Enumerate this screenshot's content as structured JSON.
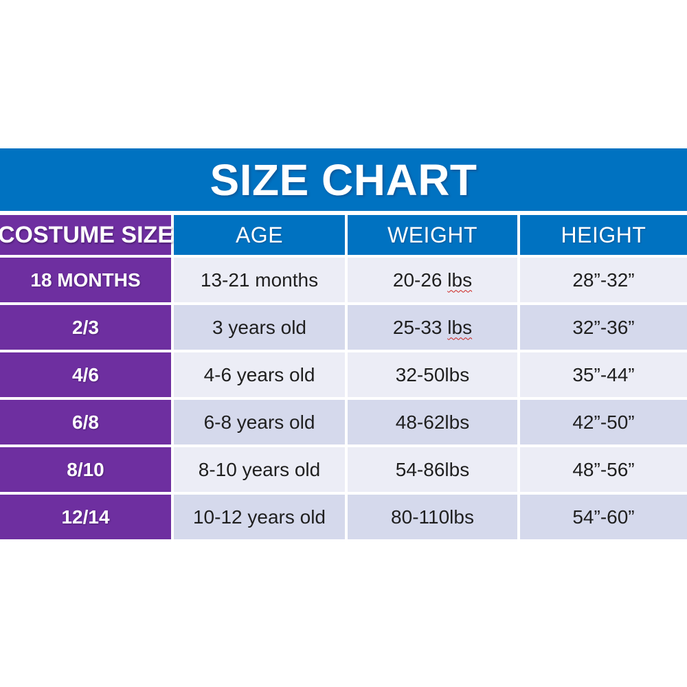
{
  "title": "SIZE CHART",
  "colors": {
    "band_blue": "#0072c1",
    "column_purple": "#6e2fa0",
    "row_light": "#ecedf6",
    "row_dark": "#d5d9ec",
    "body_text": "#1f1f1f",
    "header_text": "#ffffff",
    "spellcheck_red": "#cc1f1a"
  },
  "table": {
    "headers": [
      "COSTUME SIZE",
      "AGE",
      "WEIGHT",
      "HEIGHT"
    ],
    "rows": [
      {
        "size": "18 MONTHS",
        "age": "13-21 months",
        "weight_range": "20-26",
        "weight_unit": "lbs",
        "height": "28”-32”"
      },
      {
        "size": "2/3",
        "age": "3 years old",
        "weight_range": "25-33",
        "weight_unit": "lbs",
        "height": "32”-36”"
      },
      {
        "size": "4/6",
        "age": "4-6 years old",
        "weight_range": "32-50",
        "weight_unit": "lbs",
        "height": "35”-44”"
      },
      {
        "size": "6/8",
        "age": "6-8 years old",
        "weight_range": "48-62",
        "weight_unit": "lbs",
        "height": "42”-50”"
      },
      {
        "size": "8/10",
        "age": "8-10 years old",
        "weight_range": "54-86",
        "weight_unit": "lbs",
        "height": "48”-56”"
      },
      {
        "size": "12/14",
        "age": "10-12 years old",
        "weight_range": "80-110",
        "weight_unit": "lbs",
        "height": "54”-60”"
      }
    ]
  },
  "chart_data": {
    "type": "table",
    "title": "SIZE CHART",
    "columns": [
      "COSTUME SIZE",
      "AGE",
      "WEIGHT",
      "HEIGHT"
    ],
    "rows": [
      [
        "18 MONTHS",
        "13-21 months",
        "20-26 lbs",
        "28”-32”"
      ],
      [
        "2/3",
        "3 years old",
        "25-33 lbs",
        "32”-36”"
      ],
      [
        "4/6",
        "4-6 years old",
        "32-50lbs",
        "35”-44”"
      ],
      [
        "6/8",
        "6-8 years old",
        "48-62lbs",
        "42”-50”"
      ],
      [
        "8/10",
        "8-10 years old",
        "54-86lbs",
        "48”-56”"
      ],
      [
        "12/14",
        "10-12 years old",
        "80-110lbs",
        "54”-60”"
      ]
    ]
  }
}
